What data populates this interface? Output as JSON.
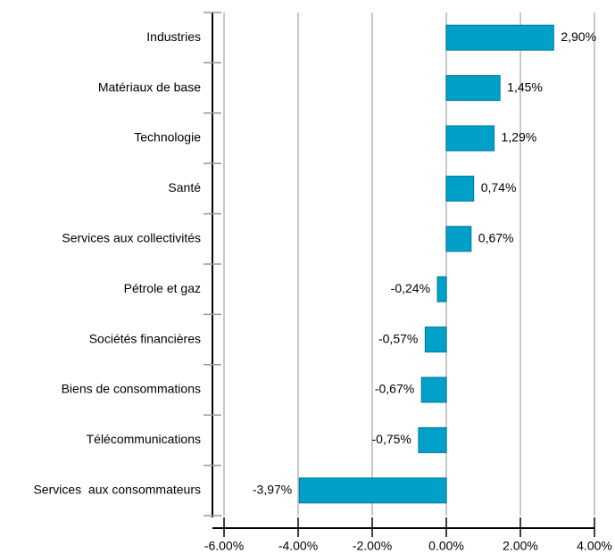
{
  "chart_data": {
    "type": "barh",
    "categories": [
      "Industries",
      "Matériaux de base",
      "Technologie",
      "Santé",
      "Services aux collectivités",
      "Pétrole et gaz",
      "Sociétés financières",
      "Biens de consommations",
      "Télécommunications",
      "Services  aux consommateurs"
    ],
    "values": [
      2.9,
      1.45,
      1.29,
      0.74,
      0.67,
      -0.24,
      -0.57,
      -0.67,
      -0.75,
      -3.97
    ],
    "value_labels": [
      "2,90%",
      "1,45%",
      "1,29%",
      "0,74%",
      "0,67%",
      "-0,24%",
      "-0,57%",
      "-0,67%",
      "-0,75%",
      "-3,97%"
    ],
    "color": "#00a0c8",
    "xlim": [
      -6,
      4
    ],
    "xticks": [
      {
        "value": -6,
        "label": "-6.00%"
      },
      {
        "value": -4,
        "label": "-4.00%"
      },
      {
        "value": -2,
        "label": "-2.00%"
      },
      {
        "value": 0,
        "label": "0.00%"
      },
      {
        "value": 2,
        "label": "2.00%"
      },
      {
        "value": 4,
        "label": "4.00%"
      }
    ],
    "grid": true
  }
}
